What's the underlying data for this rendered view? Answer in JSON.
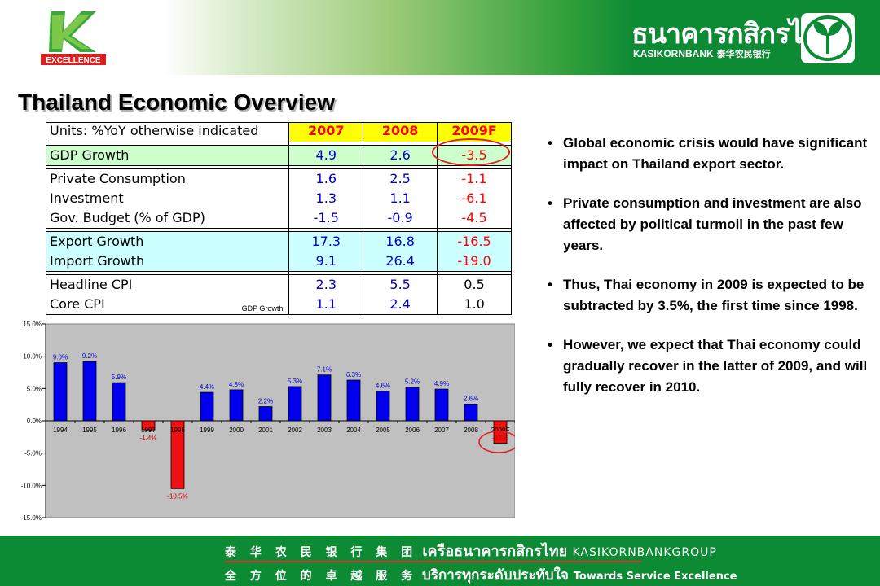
{
  "header": {
    "left_logo_text": "EXCELLENCE",
    "bank_name_thai": "ธนาคารกสิกรไทย",
    "bank_name_en": "KASIKORNBANK",
    "bank_name_cn": "泰华农民银行"
  },
  "title": "Thailand Economic Overview",
  "table": {
    "units_label": "Units: %YoY otherwise indicated",
    "years": [
      "2007",
      "2008",
      "2009F"
    ],
    "groups": [
      {
        "style": "gdp",
        "rows": [
          {
            "label": "GDP Growth",
            "v2007": "4.9",
            "v2008": "2.6",
            "v2009": "-3.5"
          }
        ]
      },
      {
        "style": "plain",
        "rows": [
          {
            "label": "Private Consumption",
            "v2007": "1.6",
            "v2008": "2.5",
            "v2009": "-1.1"
          },
          {
            "label": "Investment",
            "v2007": "1.3",
            "v2008": "1.1",
            "v2009": "-6.1"
          },
          {
            "label": "Gov. Budget (% of GDP)",
            "v2007": "-1.5",
            "v2008": "-0.9",
            "v2009": "-4.5"
          }
        ]
      },
      {
        "style": "trade",
        "rows": [
          {
            "label": "Export Growth",
            "v2007": "17.3",
            "v2008": "16.8",
            "v2009": "-16.5"
          },
          {
            "label": "Import Growth",
            "v2007": "9.1",
            "v2008": "26.4",
            "v2009": "-19.0"
          }
        ]
      },
      {
        "style": "plain",
        "rows": [
          {
            "label": "Headline CPI",
            "v2007": "2.3",
            "v2008": "5.5",
            "v2009": "0.5"
          },
          {
            "label": "Core CPI",
            "v2007": "1.1",
            "v2008": "2.4",
            "v2009": "1.0"
          }
        ]
      }
    ]
  },
  "bullets": [
    "Global economic crisis would have significant impact on Thailand export sector.",
    "Private consumption and investment are also affected by political turmoil in the past few years.",
    "Thus, Thai economy in 2009 is expected to be subtracted by 3.5%, the first time since 1998.",
    "However, we expect that Thai economy could gradually recover in the latter of 2009, and will fully recover in 2010."
  ],
  "chart_data": {
    "type": "bar",
    "title": "GDP Growth",
    "xlabel": "",
    "ylabel": "",
    "categories": [
      "1994",
      "1995",
      "1996",
      "1997",
      "1998",
      "1999",
      "2000",
      "2001",
      "2002",
      "2003",
      "2004",
      "2005",
      "2006",
      "2007",
      "2008",
      "2009F"
    ],
    "values": [
      9.0,
      9.2,
      5.9,
      -1.4,
      -10.5,
      4.4,
      4.8,
      2.2,
      5.3,
      7.1,
      6.3,
      4.6,
      5.2,
      4.9,
      2.6,
      -3.5
    ],
    "data_labels": [
      "9.0%",
      "9.2%",
      "5.9%",
      "-1.4%",
      "-10.5%",
      "4.4%",
      "4.8%",
      "2.2%",
      "5.3%",
      "7.1%",
      "6.3%",
      "4.6%",
      "5.2%",
      "4.9%",
      "2.6%",
      "-3.5%"
    ],
    "ylim": [
      -15,
      15
    ],
    "yticks": [
      15,
      10,
      5,
      0,
      -5,
      -10,
      -15
    ],
    "ytick_labels": [
      "15.0%",
      "10.0%",
      "5.0%",
      "0.0%",
      "-5.0%",
      "-10.0%",
      "-15.0%"
    ],
    "positive_color": "#0000ee",
    "negative_color": "#ee1111",
    "plot_background": "#c0c0c0",
    "grid": false,
    "legend": "none"
  },
  "footer": {
    "line1_cn": "泰 华 农 民 银 行 集 团",
    "line1_thai": "เครือธนาคารกสิกรไทย",
    "line1_en": "KASIKORNBANKGROUP",
    "line2_cn": "全 方 位 的 卓 越 服 务",
    "line2_thai": "บริการทุกระดับประทับใจ",
    "line2_en": "Towards Service Excellence"
  },
  "colors": {
    "brand_green": "#0d8a34",
    "highlight_red": "#e02020",
    "header_yellow": "#ffff00"
  }
}
